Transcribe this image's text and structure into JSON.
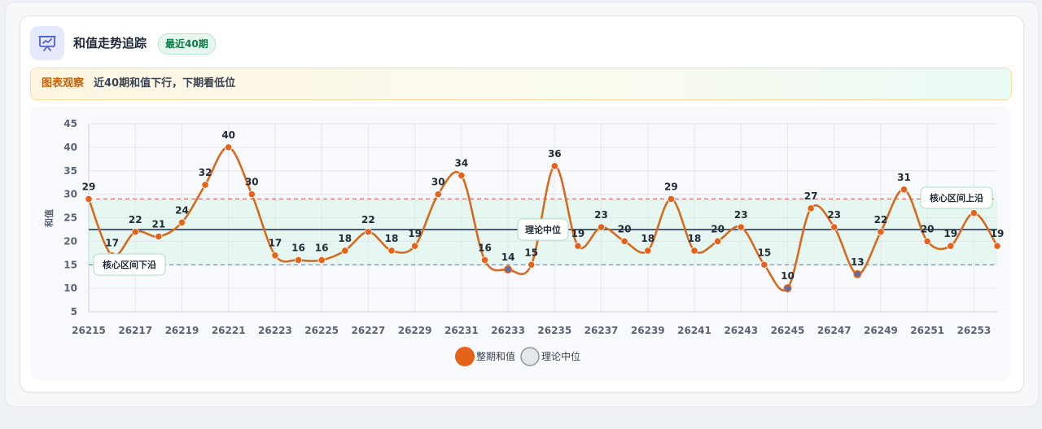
{
  "header": {
    "title": "和值走势追踪",
    "badge": "最近40期",
    "icon": "chart-presentation-icon"
  },
  "notice": {
    "label": "图表观察",
    "text": "近40期和值下行，下期看低位"
  },
  "colors": {
    "series_line": "#d66a1e",
    "series_marker": "#e4621a",
    "low_marker": "#5b6fa8",
    "median_line": "#4b5b7a",
    "upper_band_line": "#e06b6b",
    "lower_band_line": "#6b93d6",
    "band_fill": "#dff5ec"
  },
  "chart_data": {
    "type": "line",
    "ylabel": "和值",
    "xlabel": "",
    "ylim": [
      5,
      45
    ],
    "yticks": [
      5,
      10,
      15,
      20,
      25,
      30,
      35,
      40,
      45
    ],
    "x": [
      26215,
      26216,
      26217,
      26218,
      26219,
      26220,
      26221,
      26222,
      26223,
      26224,
      26225,
      26226,
      26227,
      26228,
      26229,
      26230,
      26231,
      26232,
      26233,
      26234,
      26235,
      26236,
      26237,
      26238,
      26239,
      26240,
      26241,
      26242,
      26243,
      26244,
      26245,
      26246,
      26247,
      26248,
      26249,
      26250,
      26251,
      26252,
      26253,
      26254
    ],
    "xticks": [
      "26215",
      "26217",
      "26219",
      "26221",
      "26223",
      "26225",
      "26227",
      "26229",
      "26231",
      "26233",
      "26235",
      "26237",
      "26239",
      "26241",
      "26243",
      "26245",
      "26247",
      "26249",
      "26251",
      "26253"
    ],
    "series": [
      {
        "name": "整期和值",
        "values": [
          29,
          17,
          22,
          21,
          24,
          32,
          40,
          30,
          17,
          16,
          16,
          18,
          22,
          18,
          19,
          30,
          34,
          16,
          14,
          15,
          36,
          19,
          23,
          20,
          18,
          29,
          18,
          20,
          23,
          15,
          10,
          27,
          23,
          13,
          22,
          31,
          20,
          19,
          26,
          19
        ]
      }
    ],
    "reference_lines": [
      {
        "name": "理论中位",
        "value": 22.5
      },
      {
        "name": "核心区间下沿",
        "value": 15
      },
      {
        "name": "核心区间上沿",
        "value": 29
      }
    ],
    "legend": {
      "position": "bottom-center",
      "items": [
        "整期和值",
        "理论中位"
      ]
    },
    "grid": true
  }
}
